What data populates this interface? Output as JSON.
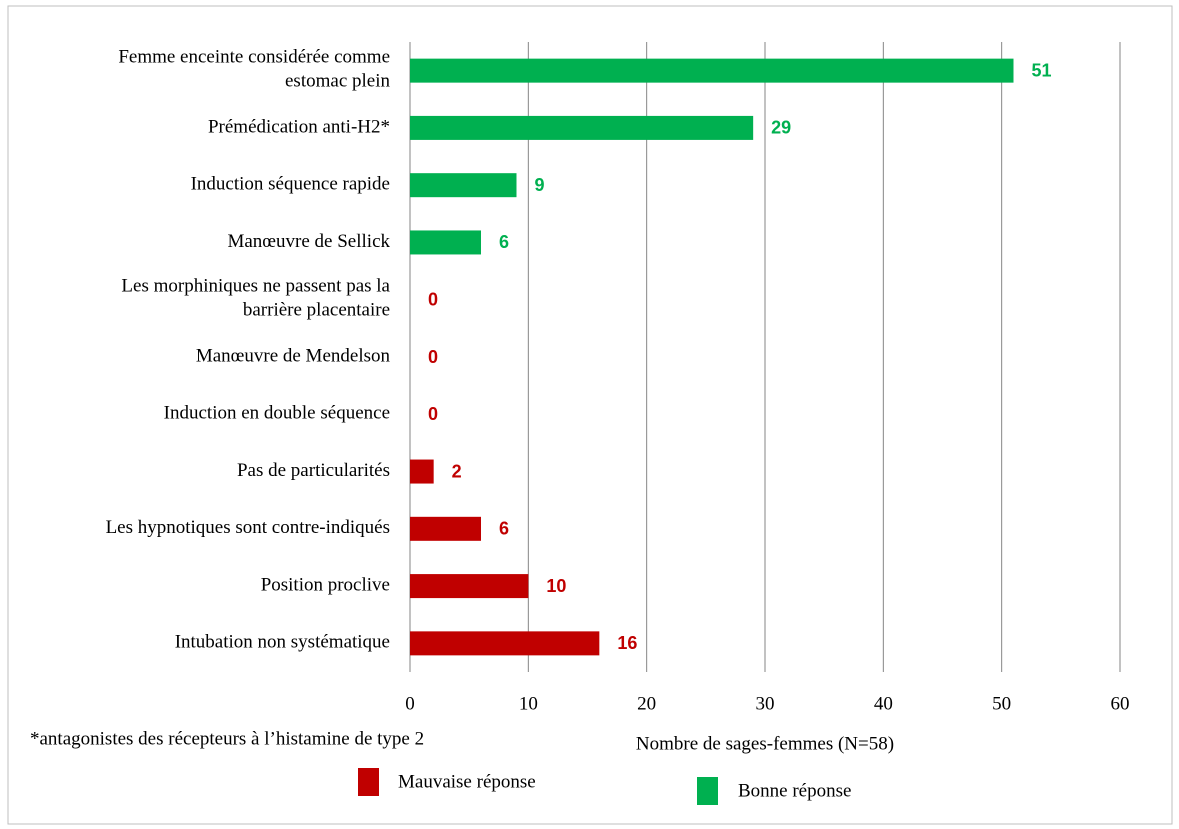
{
  "chart_data": {
    "type": "bar",
    "orientation": "horizontal",
    "categories": [
      "Femme enceinte considérée comme\nestomac plein",
      "Prémédication anti-H2*",
      "Induction séquence rapide",
      "Manœuvre de Sellick",
      "Les morphiniques ne passent pas la\nbarrière placentaire",
      "Manœuvre de Mendelson",
      "Induction en double séquence",
      "Pas de particularités",
      "Les hypnotiques sont contre-indiqués",
      "Position proclive",
      "Intubation non systématique"
    ],
    "series": [
      {
        "name": "Mauvaise réponse",
        "color": "#c00000",
        "values": [
          null,
          null,
          null,
          null,
          0,
          0,
          0,
          2,
          6,
          10,
          16
        ]
      },
      {
        "name": "Bonne réponse",
        "color": "#00b050",
        "values": [
          51,
          29,
          9,
          6,
          null,
          null,
          null,
          null,
          null,
          null,
          null
        ]
      }
    ],
    "xlabel": "Nombre de sages-femmes (N=58)",
    "footnote": "*antagonistes des récepteurs à l’histamine de type 2",
    "xlim": [
      0,
      60
    ],
    "xticks": [
      0,
      10,
      20,
      30,
      40,
      50,
      60
    ],
    "grid": true
  }
}
